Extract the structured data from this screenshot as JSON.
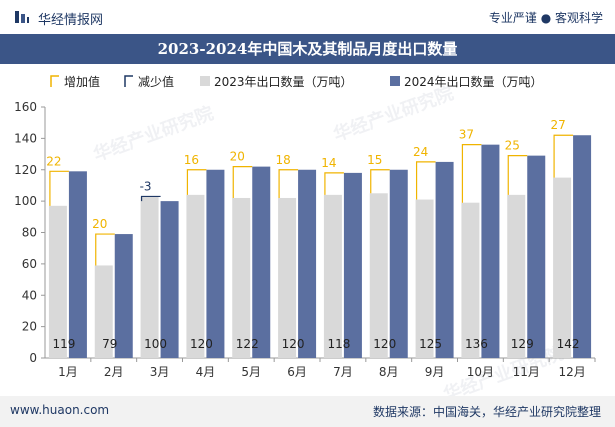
{
  "header": {
    "brand": "华经情报网",
    "slogan": "专业严谨 ● 客观科学"
  },
  "footer": {
    "website": "www.huaon.com",
    "source": "数据来源：中国海关，华经产业研究院整理"
  },
  "watermark": "华经产业研究院",
  "colors": {
    "title_bg": "#3b5587",
    "bar_2023": "#d9d9d9",
    "bar_2024": "#5b6fa0",
    "increase": "#f0b400",
    "decrease": "#1f3864"
  },
  "legend": {
    "increase": "增加值",
    "decrease": "减少值",
    "s2023": "2023年出口数量（万吨）",
    "s2024": "2024年出口数量（万吨）"
  },
  "chart_data": {
    "type": "bar",
    "title": "2023-2024年中国木及其制品月度出口数量",
    "categories": [
      "1月",
      "2月",
      "3月",
      "4月",
      "5月",
      "6月",
      "7月",
      "8月",
      "9月",
      "10月",
      "11月",
      "12月"
    ],
    "series": [
      {
        "name": "2023年出口数量（万吨）",
        "values": [
          97,
          59,
          103,
          104,
          102,
          102,
          104,
          105,
          101,
          99,
          104,
          115
        ]
      },
      {
        "name": "2024年出口数量（万吨）",
        "values": [
          119,
          79,
          100,
          120,
          122,
          120,
          118,
          120,
          125,
          136,
          129,
          142
        ]
      }
    ],
    "change": {
      "increase_name": "增加值",
      "decrease_name": "减少值",
      "values": [
        22,
        20,
        -3,
        16,
        20,
        18,
        14,
        15,
        24,
        37,
        25,
        27
      ],
      "labels": [
        "22",
        "20",
        "-3",
        "16",
        "20",
        "18",
        "14",
        "15",
        "24",
        "37",
        "25",
        "27"
      ]
    },
    "data_labels_2024": [
      "119",
      "79",
      "100",
      "120",
      "122",
      "120",
      "118",
      "120",
      "125",
      "136",
      "129",
      "142"
    ],
    "ylim": [
      0,
      160
    ],
    "yticks": [
      "0",
      "20",
      "40",
      "60",
      "80",
      "100",
      "120",
      "140",
      "160"
    ],
    "xlabel": "",
    "ylabel": "",
    "grid": false,
    "legend_position": "top"
  }
}
